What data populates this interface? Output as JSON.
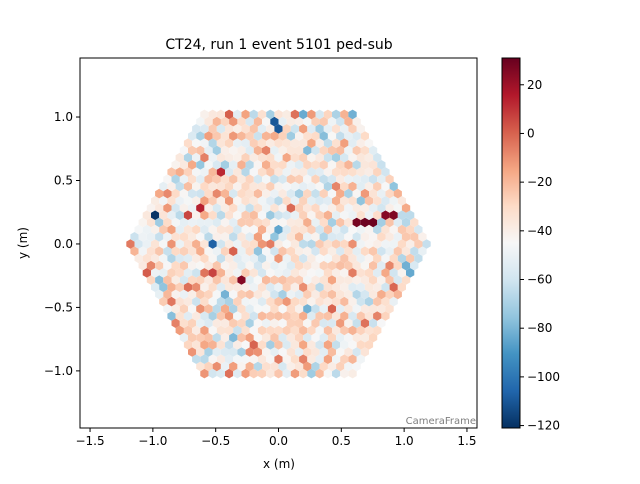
{
  "chart_data": {
    "type": "heatmap",
    "subtype": "hexagonal camera image",
    "title": "CT24, run 1 event 5101 ped-sub",
    "xlabel": "x  (m)",
    "ylabel": "y  (m)",
    "xlim": [
      -1.58,
      1.58
    ],
    "ylim": [
      -1.45,
      1.465
    ],
    "xticks": [
      -1.5,
      -1.0,
      -0.5,
      0.0,
      0.5,
      1.0,
      1.5
    ],
    "xtick_labels": [
      "−1.5",
      "−1.0",
      "−0.5",
      "0.0",
      "0.5",
      "1.0",
      "1.5"
    ],
    "yticks": [
      1.0,
      0.5,
      0.0,
      -0.5,
      -1.0
    ],
    "ytick_labels": [
      "1.0",
      "0.5",
      "0.0",
      "−0.5",
      "−1.0"
    ],
    "frame_label": "CameraFrame",
    "colormap": "RdBu_r",
    "colormap_stops": [
      "#053061",
      "#2166ac",
      "#4393c3",
      "#92c5de",
      "#d1e5f0",
      "#f7f7f7",
      "#fddbc7",
      "#f4a582",
      "#d6604d",
      "#b2182b",
      "#67001f"
    ],
    "colorbar": {
      "range": [
        -121,
        31
      ],
      "ticks": [
        20,
        0,
        -20,
        -40,
        -60,
        -80,
        -100,
        -120
      ],
      "tick_labels": [
        "20",
        "0",
        "−20",
        "−40",
        "−60",
        "−80",
        "−100",
        "−120"
      ]
    },
    "grid": false,
    "legend": "none",
    "hot_pixels": [
      {
        "x": 0.6,
        "y": 0.18,
        "value": 28
      },
      {
        "x": 0.72,
        "y": 0.18,
        "value": 30
      },
      {
        "x": 0.85,
        "y": 0.22,
        "value": 25
      },
      {
        "x": 0.93,
        "y": 0.22,
        "value": 26
      },
      {
        "x": -0.3,
        "y": -0.28,
        "value": 25
      },
      {
        "x": -0.6,
        "y": 0.3,
        "value": 14
      }
    ],
    "cold_pixels": [
      {
        "x": -1.0,
        "y": 0.22,
        "value": -120
      },
      {
        "x": -0.02,
        "y": 0.93,
        "value": -110
      }
    ]
  }
}
